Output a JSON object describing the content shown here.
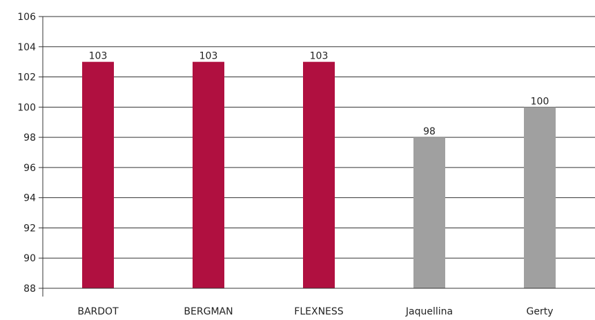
{
  "chart_data": {
    "type": "bar",
    "categories": [
      "BARDOT",
      "BERGMAN",
      "FLEXNESS",
      "Jaquellina",
      "Gerty"
    ],
    "values": [
      103,
      103,
      103,
      98,
      100
    ],
    "bar_colors": [
      "#b01040",
      "#b01040",
      "#b01040",
      "#a0a0a0",
      "#a0a0a0"
    ],
    "data_labels": [
      "103",
      "103",
      "103",
      "98",
      "100"
    ],
    "ylim": [
      88,
      106
    ],
    "yticks": [
      88,
      90,
      92,
      94,
      96,
      98,
      100,
      102,
      104,
      106
    ],
    "grid": true,
    "title": "",
    "xlabel": "",
    "ylabel": ""
  }
}
